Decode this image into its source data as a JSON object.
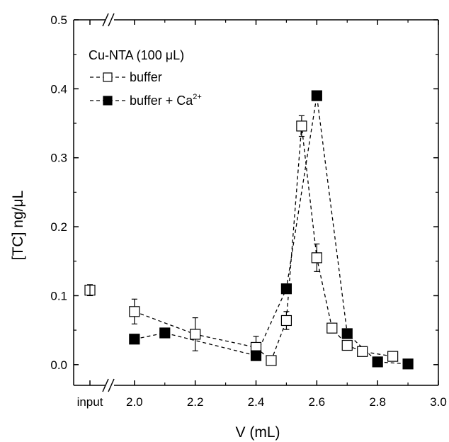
{
  "chart_data": {
    "type": "scatter",
    "title": "",
    "xlabel": "V (mL)",
    "ylabel": "[TC] ng/μL",
    "xlim": [
      1.8,
      3.0
    ],
    "ylim": [
      -0.03,
      0.5
    ],
    "x_tick_labels": [
      "input",
      "2.0",
      "2.2",
      "2.4",
      "2.6",
      "2.8",
      "3.0"
    ],
    "x_ticks": [
      2.0,
      2.2,
      2.4,
      2.6,
      2.8,
      3.0
    ],
    "y_tick_labels": [
      "0.0",
      "0.1",
      "0.2",
      "0.3",
      "0.4",
      "0.5"
    ],
    "y_ticks": [
      0.0,
      0.1,
      0.2,
      0.3,
      0.4,
      0.5
    ],
    "axis_break": "//",
    "grid": false,
    "legend": {
      "title": "Cu-NTA (100 μL)",
      "position": "top-left",
      "entries": [
        {
          "label": "buffer",
          "series": 0
        },
        {
          "label": "buffer + Ca",
          "superscript": "2+",
          "series": 1
        }
      ]
    },
    "input_point": {
      "label": "input",
      "y": 0.108,
      "err": 0.008
    },
    "series": [
      {
        "name": "buffer",
        "marker": "open-square",
        "color": "#000000",
        "x": [
          2.0,
          2.2,
          2.4,
          2.45,
          2.5,
          2.55,
          2.6,
          2.65,
          2.7,
          2.75,
          2.85
        ],
        "y": [
          0.077,
          0.044,
          0.025,
          0.006,
          0.064,
          0.346,
          0.155,
          0.053,
          0.028,
          0.019,
          0.012
        ],
        "err": [
          0.018,
          0.024,
          0.016,
          0.005,
          0.013,
          0.015,
          0.02,
          0.007,
          0.006,
          0.005,
          0.006
        ]
      },
      {
        "name": "buffer + Ca2+",
        "marker": "filled-square",
        "color": "#000000",
        "x": [
          2.0,
          2.1,
          2.4,
          2.5,
          2.6,
          2.7,
          2.8,
          2.9
        ],
        "y": [
          0.037,
          0.046,
          0.013,
          0.11,
          0.39,
          0.045,
          0.004,
          0.001
        ],
        "err": [
          0,
          0,
          0,
          0,
          0,
          0,
          0,
          0
        ]
      }
    ]
  }
}
